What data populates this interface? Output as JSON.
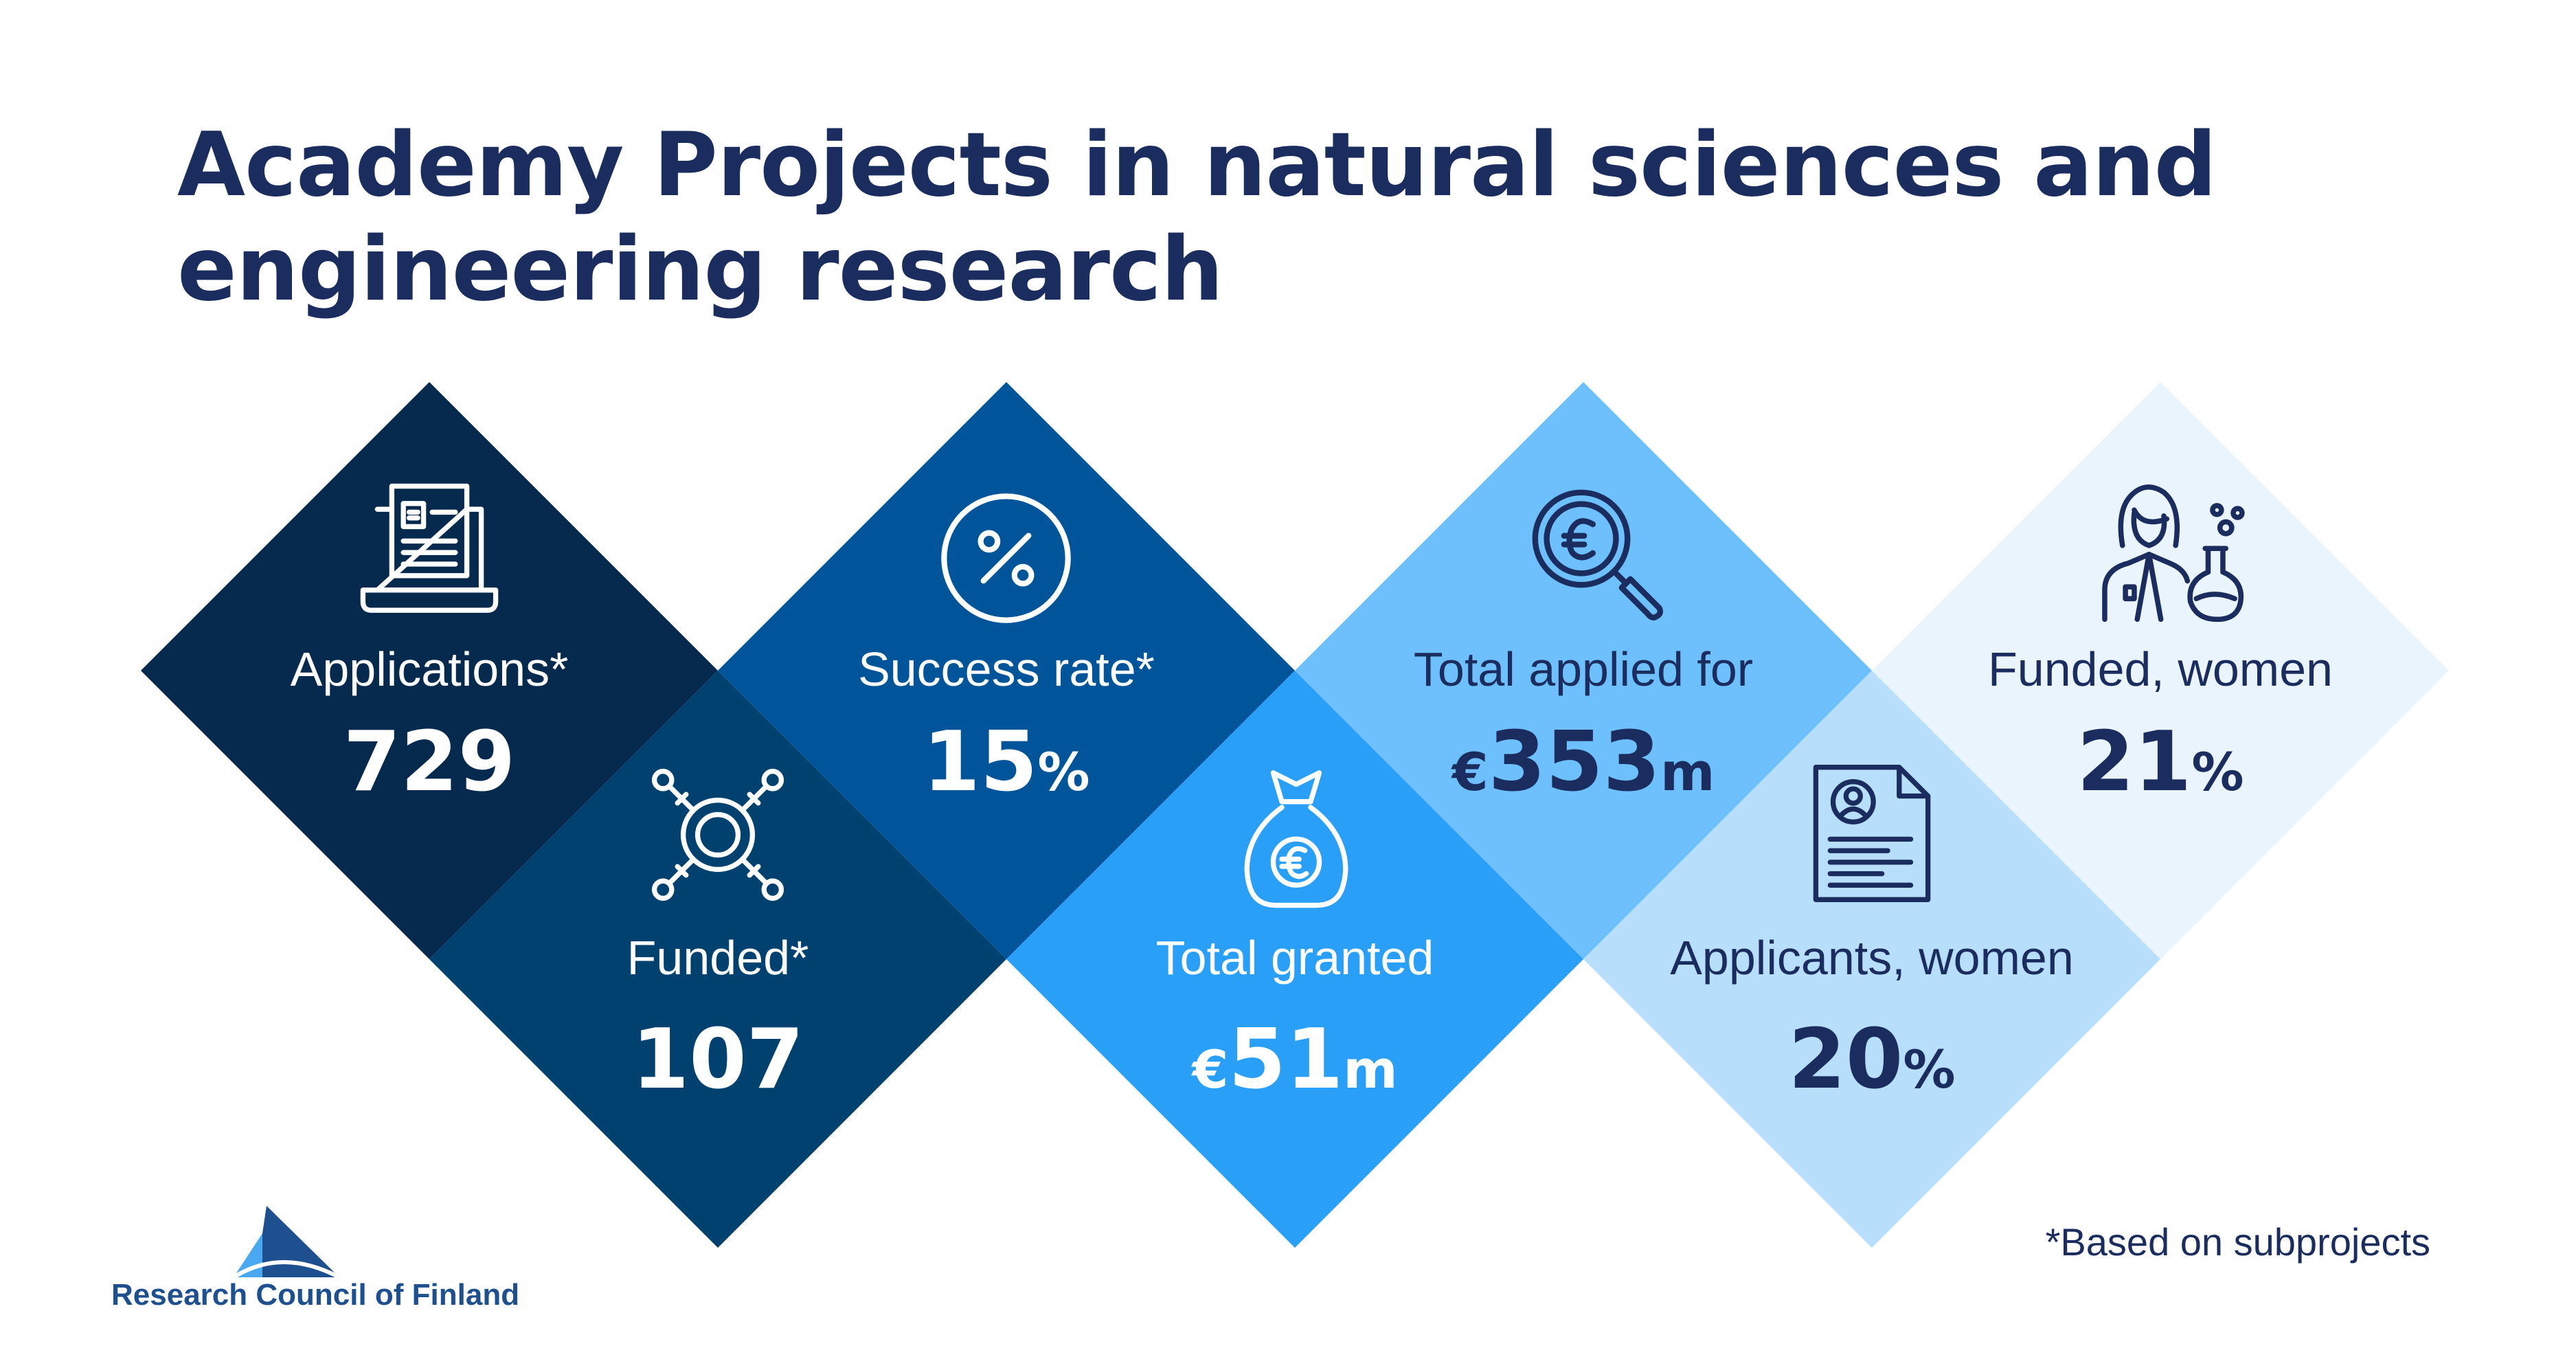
{
  "title_line1": "Academy Projects in natural sciences and",
  "title_line2": "engineering research",
  "stats": {
    "applications": {
      "label": "Applications*",
      "value": "729"
    },
    "funded": {
      "label": "Funded*",
      "value": "107"
    },
    "success_rate": {
      "label": "Success rate*",
      "value": "15",
      "unit": "%"
    },
    "total_granted": {
      "label": "Total granted",
      "prefix": "€",
      "value": "51",
      "unit": "m"
    },
    "total_applied": {
      "label": "Total applied for",
      "prefix": "€",
      "value": "353",
      "unit": "m"
    },
    "applicants_women": {
      "label": "Applicants, women",
      "value": "20",
      "unit": "%"
    },
    "funded_women": {
      "label": "Funded, women",
      "value": "21",
      "unit": "%"
    }
  },
  "footnote": "*Based on subprojects",
  "logo_text": "Research Council of Finland",
  "colors": {
    "navy": "#1b2c5e",
    "d1": "#062a4d",
    "d2": "#004170",
    "d3": "#005499",
    "d4": "#2a9ff8",
    "d5": "#6ec0fd",
    "d6": "#b7dffc",
    "d7": "#e9f4fd"
  },
  "icons": {
    "applications": "laptop-euro-document-icon",
    "funded": "target-arrows-icon",
    "success_rate": "percent-circle-icon",
    "total_granted": "money-bag-euro-icon",
    "total_applied": "magnifier-euro-icon",
    "applicants_women": "resume-document-icon",
    "funded_women": "female-scientist-icon"
  }
}
